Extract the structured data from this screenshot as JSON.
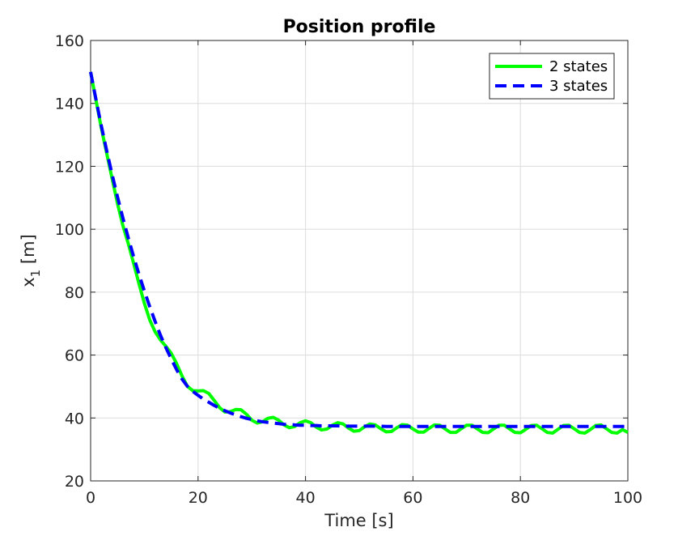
{
  "chart_data": {
    "type": "line",
    "title": "Position profile",
    "xlabel": "Time [s]",
    "ylabel_main": "x",
    "ylabel_sub": "1",
    "ylabel_unit": "[m]",
    "xlim": [
      0,
      100
    ],
    "ylim": [
      20,
      160
    ],
    "xticks": [
      0,
      20,
      40,
      60,
      80,
      100
    ],
    "yticks": [
      20,
      40,
      60,
      80,
      100,
      120,
      140,
      160
    ],
    "grid": true,
    "legend_position": "top-right",
    "series": [
      {
        "name": "2 states",
        "color": "#00ff00",
        "style": "solid",
        "x": [
          0,
          1,
          2,
          3,
          4,
          5,
          6,
          7,
          8,
          9,
          10,
          11,
          12,
          13,
          14,
          15,
          16,
          17,
          18,
          19,
          20,
          21,
          22,
          23,
          24,
          25,
          26,
          27,
          28,
          29,
          30,
          31,
          32,
          33,
          34,
          35,
          36,
          37,
          38,
          39,
          40,
          41,
          42,
          43,
          44,
          45,
          46,
          47,
          48,
          49,
          50,
          51,
          52,
          53,
          54,
          55,
          56,
          57,
          58,
          59,
          60,
          61,
          62,
          63,
          64,
          65,
          66,
          67,
          68,
          69,
          70,
          71,
          72,
          73,
          74,
          75,
          76,
          77,
          78,
          79,
          80,
          81,
          82,
          83,
          84,
          85,
          86,
          87,
          88,
          89,
          90,
          91,
          92,
          93,
          94,
          95,
          96,
          97,
          98,
          99,
          100
        ],
        "y": [
          150.0,
          141.0,
          132.1,
          124.1,
          116.1,
          108.2,
          101.2,
          95.5,
          89.2,
          82.7,
          76.5,
          71.2,
          67.4,
          64.8,
          62.8,
          60.6,
          57.3,
          53.4,
          50.1,
          48.7,
          48.6,
          48.7,
          47.8,
          45.6,
          43.3,
          41.9,
          42.0,
          42.7,
          42.6,
          41.2,
          39.3,
          38.4,
          38.8,
          39.9,
          40.2,
          39.3,
          37.8,
          36.9,
          37.3,
          38.5,
          39.1,
          38.5,
          37.1,
          36.2,
          36.5,
          37.7,
          38.5,
          38.1,
          36.8,
          35.8,
          36.0,
          37.2,
          38.1,
          37.8,
          36.6,
          35.6,
          35.7,
          36.9,
          37.9,
          37.7,
          36.5,
          35.5,
          35.5,
          36.7,
          37.8,
          37.7,
          36.5,
          35.4,
          35.4,
          36.6,
          37.7,
          37.7,
          36.5,
          35.4,
          35.3,
          36.5,
          37.7,
          37.7,
          36.5,
          35.4,
          35.3,
          36.4,
          37.6,
          37.7,
          36.6,
          35.4,
          35.2,
          36.4,
          37.6,
          37.7,
          36.6,
          35.4,
          35.2,
          36.3,
          37.6,
          37.8,
          36.6,
          35.4,
          35.2,
          36.3,
          35.4
        ]
      },
      {
        "name": "3 states",
        "color": "#0000ff",
        "style": "dashed",
        "x": [
          0,
          1,
          2,
          3,
          4,
          5,
          6,
          7,
          8,
          9,
          10,
          11,
          12,
          13,
          14,
          15,
          16,
          17,
          18,
          19,
          20,
          21,
          22,
          23,
          24,
          25,
          26,
          27,
          28,
          29,
          30,
          31,
          32,
          33,
          34,
          35,
          36,
          37,
          38,
          39,
          40,
          41,
          42,
          43,
          44,
          45,
          46,
          47,
          48,
          49,
          50,
          51,
          52,
          53,
          54,
          55,
          56,
          57,
          58,
          59,
          60,
          61,
          62,
          63,
          64,
          65,
          66,
          67,
          68,
          69,
          70,
          71,
          72,
          73,
          74,
          75,
          76,
          77,
          78,
          79,
          80,
          81,
          82,
          83,
          84,
          85,
          86,
          87,
          88,
          89,
          90,
          91,
          92,
          93,
          94,
          95,
          96,
          97,
          98,
          99,
          100
        ],
        "y": [
          150.0,
          141.2,
          132.8,
          124.9,
          117.4,
          110.3,
          103.6,
          97.3,
          91.3,
          85.7,
          80.4,
          75.4,
          70.7,
          66.3,
          62.4,
          58.8,
          55.4,
          52.4,
          50.1,
          48.5,
          47.2,
          46.0,
          45.0,
          44.0,
          43.1,
          42.3,
          41.6,
          41.0,
          40.4,
          39.9,
          39.5,
          39.1,
          38.8,
          38.6,
          38.4,
          38.2,
          38.0,
          37.9,
          37.8,
          37.7,
          37.7,
          37.6,
          37.6,
          37.5,
          37.5,
          37.5,
          37.5,
          37.4,
          37.4,
          37.4,
          37.4,
          37.4,
          37.4,
          37.4,
          37.4,
          37.3,
          37.3,
          37.3,
          37.3,
          37.3,
          37.3,
          37.3,
          37.3,
          37.3,
          37.3,
          37.3,
          37.3,
          37.3,
          37.3,
          37.3,
          37.3,
          37.3,
          37.3,
          37.3,
          37.3,
          37.3,
          37.3,
          37.3,
          37.3,
          37.3,
          37.3,
          37.3,
          37.3,
          37.3,
          37.3,
          37.3,
          37.3,
          37.3,
          37.3,
          37.3,
          37.3,
          37.3,
          37.3,
          37.3,
          37.3,
          37.3,
          37.3,
          37.3,
          37.3,
          37.3,
          37.3
        ]
      }
    ]
  }
}
